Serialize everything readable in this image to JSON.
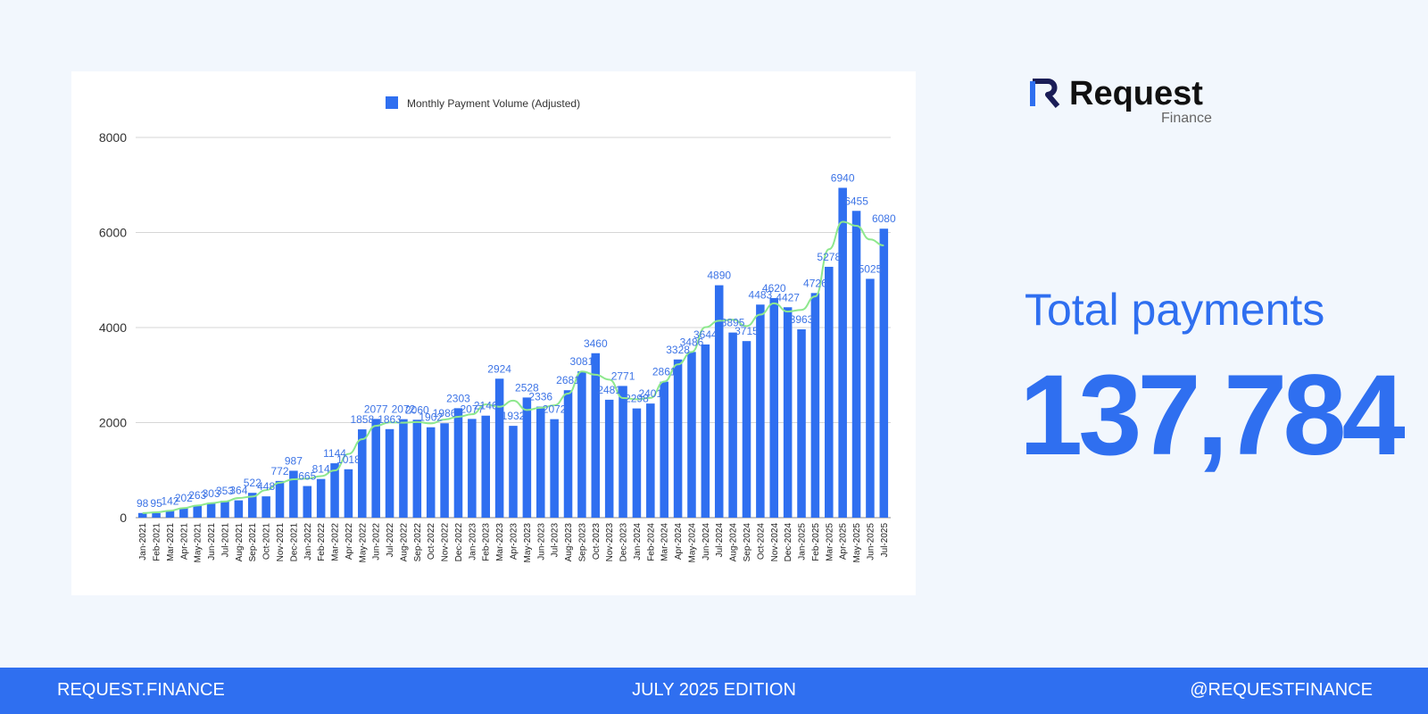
{
  "footer": {
    "left": "REQUEST.FINANCE",
    "center": "JULY 2025  EDITION",
    "right": "@REQUESTFINANCE"
  },
  "brand": {
    "name": "Request",
    "sub": "Finance",
    "icon": "request-r-logo",
    "colors": {
      "dark": "#1a1d57",
      "accent": "#2f6ff0"
    }
  },
  "stat": {
    "label": "Total payments",
    "value": "137,784"
  },
  "colors": {
    "bar": "#2f6ff0",
    "trend": "#8ee88e",
    "background": "#f2f7fd",
    "footer": "#2f6ff0"
  },
  "chart_data": {
    "type": "bar",
    "legend": "Monthly Payment Volume (Adjusted)",
    "legend_position": "top-center",
    "grid": true,
    "ylim": [
      0,
      8000
    ],
    "yticks": [
      0,
      2000,
      4000,
      6000,
      8000
    ],
    "categories": [
      "Jan-2021",
      "Feb-2021",
      "Mar-2021",
      "Apr-2021",
      "May-2021",
      "Jun-2021",
      "Jul-2021",
      "Aug-2021",
      "Sep-2021",
      "Oct-2021",
      "Nov-2021",
      "Dec-2021",
      "Jan-2022",
      "Feb-2022",
      "Mar-2022",
      "Apr-2022",
      "May-2022",
      "Jun-2022",
      "Jul-2022",
      "Aug-2022",
      "Sep-2022",
      "Oct-2022",
      "Nov-2022",
      "Dec-2022",
      "Jan-2023",
      "Feb-2023",
      "Mar-2023",
      "Apr-2023",
      "May-2023",
      "Jun-2023",
      "Jul-2023",
      "Aug-2023",
      "Sep-2023",
      "Oct-2023",
      "Nov-2023",
      "Dec-2023",
      "Jan-2024",
      "Feb-2024",
      "Mar-2024",
      "Apr-2024",
      "May-2024",
      "Jun-2024",
      "Jul-2024",
      "Aug-2024",
      "Sep-2024",
      "Oct-2024",
      "Nov-2024",
      "Dec-2024",
      "Jan-2025",
      "Feb-2025",
      "Mar-2025",
      "Apr-2025",
      "May-2025",
      "Jun-2025",
      "Jul-2025"
    ],
    "values": [
      98,
      95,
      142,
      202,
      263,
      303,
      353,
      364,
      522,
      448,
      772,
      987,
      665,
      814,
      1144,
      1018,
      1858,
      2077,
      1863,
      2072,
      2060,
      1902,
      1986,
      2303,
      2077,
      2146,
      2924,
      1932,
      2528,
      2336,
      2072,
      2681,
      3081,
      3460,
      2481,
      2771,
      2298,
      2401,
      2861,
      3328,
      3486,
      3644,
      4890,
      3895,
      3715,
      4483,
      4620,
      4427,
      3963,
      4726,
      5278,
      6940,
      6455,
      5025,
      6080
    ],
    "labels": [
      "98",
      "95",
      "142",
      "202",
      "263",
      "303",
      "353",
      "364",
      "522",
      "448",
      "772",
      "987",
      "665",
      "814",
      "1144",
      "1018",
      "1858",
      "2077",
      "1863",
      "2072",
      "2060",
      "1902",
      "1986",
      "2303",
      "2077",
      "2146",
      "2924",
      "1932",
      "2528",
      "2336",
      "2072",
      "2681",
      "3081",
      "3460",
      "2481",
      "2771",
      "2298",
      "2401",
      "2861",
      "3328",
      "3486",
      "3644",
      "4890",
      "3895",
      "3715",
      "4483",
      "4620",
      "4427",
      "3963",
      "4726",
      "5278",
      "6940",
      "6455",
      "5025",
      "6080"
    ]
  }
}
